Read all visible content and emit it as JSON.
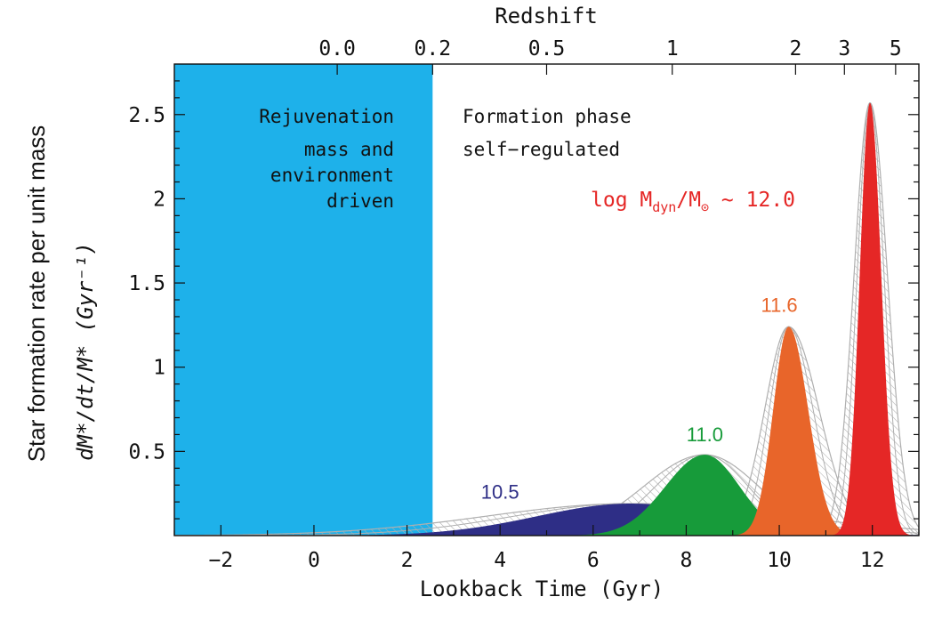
{
  "page_label": "Star formation rate per unit mass",
  "colors": {
    "rejuvenation_region": "#1EB1EA",
    "red": "#E52726",
    "orange": "#E8652A",
    "green": "#179B3A",
    "navy": "#2E2E86",
    "hatch": "#AFAFAF"
  },
  "annotations": {
    "rejuvenation": [
      "Rejuvenation",
      "mass and",
      "environment",
      "driven"
    ],
    "formation": [
      "Formation phase",
      "self−regulated"
    ],
    "mass_prefix": "log M",
    "mass_sub_dyn": "dyn",
    "mass_slash": "/M",
    "mass_sun": "⊙",
    "mass_value": " ~ 12.0"
  },
  "chart_data": {
    "type": "area",
    "title": "",
    "xlabel": "Lookback Time (Gyr)",
    "ylabel": "dM*/dt/M* (Gyr⁻¹)",
    "xlim": [
      -3,
      13
    ],
    "ylim": [
      0,
      2.8
    ],
    "x_ticks": [
      -2,
      0,
      2,
      4,
      6,
      8,
      10,
      12
    ],
    "x_tick_labels": [
      "−2",
      "0",
      "2",
      "4",
      "6",
      "8",
      "10",
      "12"
    ],
    "y_ticks": [
      0.5,
      1,
      1.5,
      2,
      2.5
    ],
    "y_tick_labels": [
      "0.5",
      "1",
      "1.5",
      "2",
      "2.5"
    ],
    "top_axis": {
      "label": "Redshift",
      "ticks": [
        {
          "label": "0.0",
          "lookback": 0.5
        },
        {
          "label": "0.2",
          "lookback": 2.55
        },
        {
          "label": "0.5",
          "lookback": 5.0
        },
        {
          "label": "1",
          "lookback": 7.7
        },
        {
          "label": "2",
          "lookback": 10.35
        },
        {
          "label": "3",
          "lookback": 11.4
        },
        {
          "label": "5",
          "lookback": 12.5
        }
      ]
    },
    "shaded_region": {
      "x0": -3,
      "x1": 2.55,
      "label": "Rejuvenation"
    },
    "series": [
      {
        "name": "10.5",
        "color": "#2E2E86",
        "peak_time": 6.8,
        "peak_value": 0.19,
        "sigma_left": 2.0,
        "sigma_right": 2.2,
        "label_at": [
          4.0,
          0.22
        ]
      },
      {
        "name": "11.0",
        "color": "#179B3A",
        "peak_time": 8.4,
        "peak_value": 0.48,
        "sigma_left": 0.85,
        "sigma_right": 0.75,
        "label_at": [
          8.4,
          0.56
        ]
      },
      {
        "name": "11.6",
        "color": "#E8652A",
        "peak_time": 10.2,
        "peak_value": 1.24,
        "sigma_left": 0.33,
        "sigma_right": 0.42,
        "label_at": [
          10.0,
          1.33
        ]
      },
      {
        "name": "12.0",
        "color": "#E52726",
        "peak_time": 11.95,
        "peak_value": 2.57,
        "sigma_left": 0.22,
        "sigma_right": 0.24,
        "label_at": null
      }
    ]
  }
}
